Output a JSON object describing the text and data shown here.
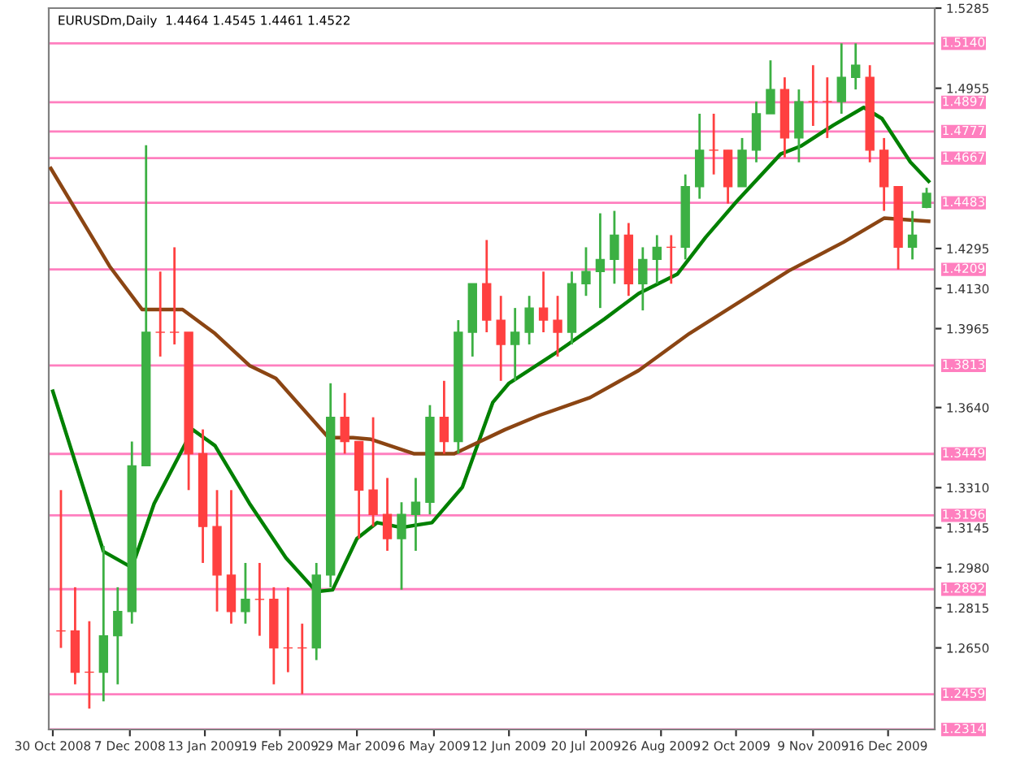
{
  "chart_data": {
    "type": "candlestick",
    "title": "EURUSDm,Daily  1.4464 1.4545 1.4461 1.4522",
    "x": [
      "2008-11-03",
      "2008-11-10",
      "2008-11-17",
      "2008-11-24",
      "2008-12-01",
      "2008-12-08",
      "2008-12-15",
      "2008-12-22",
      "2008-12-29",
      "2009-01-05",
      "2009-01-12",
      "2009-01-19",
      "2009-01-26",
      "2009-02-02",
      "2009-02-09",
      "2009-02-16",
      "2009-02-23",
      "2009-03-02",
      "2009-03-09",
      "2009-03-16",
      "2009-03-23",
      "2009-03-30",
      "2009-04-06",
      "2009-04-13",
      "2009-04-20",
      "2009-04-27",
      "2009-05-04",
      "2009-05-11",
      "2009-05-18",
      "2009-05-25",
      "2009-06-01",
      "2009-06-08",
      "2009-06-15",
      "2009-06-22",
      "2009-06-29",
      "2009-07-06",
      "2009-07-13",
      "2009-07-20",
      "2009-07-27",
      "2009-08-03",
      "2009-08-10",
      "2009-08-17",
      "2009-08-24",
      "2009-08-31",
      "2009-09-07",
      "2009-09-14",
      "2009-09-21",
      "2009-09-28",
      "2009-10-05",
      "2009-10-12",
      "2009-10-19",
      "2009-10-26",
      "2009-11-02",
      "2009-11-09",
      "2009-11-16",
      "2009-11-23",
      "2009-11-30",
      "2009-12-07",
      "2009-12-14",
      "2009-12-21",
      "2009-12-28",
      "2010-01-04"
    ],
    "ohlc": [
      [
        1.272,
        1.33,
        1.265,
        1.272
      ],
      [
        1.272,
        1.29,
        1.25,
        1.255
      ],
      [
        1.255,
        1.276,
        1.24,
        1.255
      ],
      [
        1.255,
        1.307,
        1.243,
        1.27
      ],
      [
        1.27,
        1.29,
        1.25,
        1.28
      ],
      [
        1.28,
        1.35,
        1.275,
        1.34
      ],
      [
        1.34,
        1.472,
        1.34,
        1.395
      ],
      [
        1.395,
        1.42,
        1.385,
        1.395
      ],
      [
        1.395,
        1.43,
        1.39,
        1.395
      ],
      [
        1.395,
        1.395,
        1.33,
        1.345
      ],
      [
        1.345,
        1.355,
        1.3,
        1.315
      ],
      [
        1.315,
        1.33,
        1.28,
        1.295
      ],
      [
        1.295,
        1.33,
        1.275,
        1.28
      ],
      [
        1.28,
        1.3,
        1.275,
        1.285
      ],
      [
        1.285,
        1.3,
        1.27,
        1.285
      ],
      [
        1.285,
        1.29,
        1.25,
        1.265
      ],
      [
        1.265,
        1.29,
        1.255,
        1.265
      ],
      [
        1.265,
        1.275,
        1.246,
        1.265
      ],
      [
        1.265,
        1.3,
        1.26,
        1.295
      ],
      [
        1.295,
        1.374,
        1.29,
        1.36
      ],
      [
        1.36,
        1.37,
        1.345,
        1.35
      ],
      [
        1.35,
        1.35,
        1.31,
        1.33
      ],
      [
        1.33,
        1.36,
        1.315,
        1.32
      ],
      [
        1.32,
        1.335,
        1.305,
        1.31
      ],
      [
        1.31,
        1.325,
        1.289,
        1.32
      ],
      [
        1.32,
        1.335,
        1.305,
        1.325
      ],
      [
        1.325,
        1.365,
        1.32,
        1.36
      ],
      [
        1.36,
        1.375,
        1.345,
        1.35
      ],
      [
        1.35,
        1.4,
        1.345,
        1.395
      ],
      [
        1.395,
        1.415,
        1.385,
        1.415
      ],
      [
        1.415,
        1.433,
        1.395,
        1.4
      ],
      [
        1.4,
        1.41,
        1.375,
        1.39
      ],
      [
        1.39,
        1.405,
        1.375,
        1.395
      ],
      [
        1.395,
        1.41,
        1.39,
        1.405
      ],
      [
        1.405,
        1.42,
        1.395,
        1.4
      ],
      [
        1.4,
        1.41,
        1.385,
        1.395
      ],
      [
        1.395,
        1.42,
        1.39,
        1.415
      ],
      [
        1.415,
        1.43,
        1.41,
        1.42
      ],
      [
        1.42,
        1.444,
        1.405,
        1.425
      ],
      [
        1.425,
        1.445,
        1.415,
        1.435
      ],
      [
        1.435,
        1.44,
        1.41,
        1.415
      ],
      [
        1.415,
        1.43,
        1.404,
        1.425
      ],
      [
        1.425,
        1.435,
        1.415,
        1.43
      ],
      [
        1.43,
        1.435,
        1.415,
        1.43
      ],
      [
        1.43,
        1.46,
        1.425,
        1.455
      ],
      [
        1.455,
        1.485,
        1.45,
        1.47
      ],
      [
        1.47,
        1.485,
        1.46,
        1.47
      ],
      [
        1.47,
        1.47,
        1.448,
        1.455
      ],
      [
        1.455,
        1.475,
        1.455,
        1.47
      ],
      [
        1.47,
        1.49,
        1.465,
        1.485
      ],
      [
        1.485,
        1.507,
        1.485,
        1.495
      ],
      [
        1.495,
        1.5,
        1.467,
        1.475
      ],
      [
        1.475,
        1.495,
        1.465,
        1.49
      ],
      [
        1.49,
        1.505,
        1.48,
        1.49
      ],
      [
        1.49,
        1.5,
        1.475,
        1.49
      ],
      [
        1.49,
        1.514,
        1.485,
        1.5
      ],
      [
        1.5,
        1.514,
        1.495,
        1.505
      ],
      [
        1.5,
        1.505,
        1.465,
        1.47
      ],
      [
        1.47,
        1.475,
        1.445,
        1.455
      ],
      [
        1.455,
        1.455,
        1.4209,
        1.43
      ],
      [
        1.43,
        1.445,
        1.425,
        1.435
      ],
      [
        1.4464,
        1.4545,
        1.4461,
        1.4522
      ]
    ],
    "colors": [
      "#ff4040",
      "#ff4040",
      "#ff4040",
      "#3cb043",
      "#3cb043",
      "#3cb043",
      "#3cb043",
      "#ff4040",
      "#ff4040",
      "#ff4040",
      "#ff4040",
      "#ff4040",
      "#ff4040",
      "#3cb043",
      "#ff4040",
      "#ff4040",
      "#ff4040",
      "#ff4040",
      "#3cb043",
      "#3cb043",
      "#ff4040",
      "#ff4040",
      "#ff4040",
      "#ff4040",
      "#3cb043",
      "#3cb043",
      "#3cb043",
      "#ff4040",
      "#3cb043",
      "#3cb043",
      "#ff4040",
      "#ff4040",
      "#3cb043",
      "#3cb043",
      "#ff4040",
      "#ff4040",
      "#3cb043",
      "#3cb043",
      "#3cb043",
      "#3cb043",
      "#ff4040",
      "#3cb043",
      "#3cb043",
      "#ff4040",
      "#3cb043",
      "#3cb043",
      "#ff4040",
      "#ff4040",
      "#3cb043",
      "#3cb043",
      "#3cb043",
      "#ff4040",
      "#3cb043",
      "#ff4040",
      "#ff4040",
      "#3cb043",
      "#3cb043",
      "#ff4040",
      "#ff4040",
      "#ff4040",
      "#3cb043",
      "#3cb043"
    ],
    "series": [
      {
        "type": "line",
        "color": "#008000",
        "x": [
          "2008-10-30",
          "2008-11-24",
          "2008-12-08",
          "2008-12-19",
          "2009-01-07",
          "2009-01-18",
          "2009-02-04",
          "2009-02-22",
          "2009-03-09",
          "2009-03-17",
          "2009-03-29",
          "2009-04-08",
          "2009-04-20",
          "2009-05-05",
          "2009-05-20",
          "2009-06-04",
          "2009-06-12",
          "2009-07-04",
          "2009-07-29",
          "2009-08-15",
          "2009-09-03",
          "2009-09-17",
          "2009-10-02",
          "2009-10-24",
          "2009-11-03",
          "2009-11-19",
          "2009-12-04",
          "2009-12-13",
          "2009-12-27",
          "2010-01-05"
        ],
        "values": [
          1.3707,
          1.3047,
          1.2981,
          1.3245,
          1.3549,
          1.3483,
          1.3245,
          1.3021,
          1.2882,
          1.2889,
          1.31,
          1.3166,
          1.3146,
          1.3166,
          1.3312,
          1.3661,
          1.374,
          1.3859,
          1.4004,
          1.411,
          1.4189,
          1.4341,
          1.4486,
          1.4684,
          1.4717,
          1.4803,
          1.4876,
          1.483,
          1.4651,
          1.4572
        ]
      },
      {
        "type": "line",
        "color": "#8b4513",
        "x": [
          "2008-10-29",
          "2008-11-27",
          "2008-12-13",
          "2009-01-02",
          "2009-01-18",
          "2009-02-04",
          "2009-02-17",
          "2009-03-15",
          "2009-03-27",
          "2009-04-05",
          "2009-04-26",
          "2009-05-16",
          "2009-06-10",
          "2009-06-27",
          "2009-07-22",
          "2009-08-15",
          "2009-09-09",
          "2009-10-28",
          "2009-11-24",
          "2009-12-14",
          "2010-01-05"
        ],
        "values": [
          1.4625,
          1.4222,
          1.4044,
          1.4044,
          1.3945,
          1.3813,
          1.376,
          1.3516,
          1.3516,
          1.3509,
          1.345,
          1.345,
          1.3549,
          1.3608,
          1.3681,
          1.3793,
          1.3945,
          1.4203,
          1.4321,
          1.442,
          1.4407
        ]
      }
    ],
    "xlim": [
      "2008-10-28",
      "2010-01-08"
    ],
    "xticks": [
      {
        "value": "2008-10-30",
        "label": "30 Oct 2008"
      },
      {
        "value": "2008-12-07",
        "label": "7 Dec 2008"
      },
      {
        "value": "2009-01-13",
        "label": "13 Jan 2009"
      },
      {
        "value": "2009-02-19",
        "label": "19 Feb 2009"
      },
      {
        "value": "2009-03-29",
        "label": "29 Mar 2009"
      },
      {
        "value": "2009-05-06",
        "label": "6 May 2009"
      },
      {
        "value": "2009-06-12",
        "label": "12 Jun 2009"
      },
      {
        "value": "2009-07-20",
        "label": "20 Jul 2009"
      },
      {
        "value": "2009-08-26",
        "label": "26 Aug 2009"
      },
      {
        "value": "2009-10-02",
        "label": "2 Oct 2009"
      },
      {
        "value": "2009-11-09",
        "label": "9 Nov 2009"
      },
      {
        "value": "2009-12-16",
        "label": "16 Dec 2009"
      }
    ],
    "ylim": [
      1.2314,
      1.5285
    ],
    "yticks": [
      {
        "value": 1.5285,
        "label": "1.5285"
      },
      {
        "value": 1.4955,
        "label": "1.4955"
      },
      {
        "value": 1.4295,
        "label": "1.4295"
      },
      {
        "value": 1.413,
        "label": "1.4130"
      },
      {
        "value": 1.3965,
        "label": "1.3965"
      },
      {
        "value": 1.364,
        "label": "1.3640"
      },
      {
        "value": 1.331,
        "label": "1.3310"
      },
      {
        "value": 1.3145,
        "label": "1.3145"
      },
      {
        "value": 1.298,
        "label": "1.2980"
      },
      {
        "value": 1.2815,
        "label": "1.2815"
      },
      {
        "value": 1.265,
        "label": "1.2650"
      }
    ],
    "ref_lines": [
      {
        "axis": "y",
        "value": 1.514,
        "label": "1.5140",
        "color": "#ff7fbf"
      },
      {
        "axis": "y",
        "value": 1.4897,
        "label": "1.4897",
        "color": "#ff7fbf"
      },
      {
        "axis": "y",
        "value": 1.4777,
        "label": "1.4777",
        "color": "#ff7fbf"
      },
      {
        "axis": "y",
        "value": 1.4667,
        "label": "1.4667",
        "color": "#ff7fbf"
      },
      {
        "axis": "y",
        "value": 1.4483,
        "label": "1.4483",
        "color": "#ff7fbf"
      },
      {
        "axis": "y",
        "value": 1.4209,
        "label": "1.4209",
        "color": "#ff7fbf"
      },
      {
        "axis": "y",
        "value": 1.3813,
        "label": "1.3813",
        "color": "#ff7fbf"
      },
      {
        "axis": "y",
        "value": 1.3449,
        "label": "1.3449",
        "color": "#ff7fbf"
      },
      {
        "axis": "y",
        "value": 1.3196,
        "label": "1.3196",
        "color": "#ff7fbf"
      },
      {
        "axis": "y",
        "value": 1.2892,
        "label": "1.2892",
        "color": "#ff7fbf"
      },
      {
        "axis": "y",
        "value": 1.2459,
        "label": "1.2459",
        "color": "#ff7fbf"
      },
      {
        "axis": "y",
        "value": 1.2314,
        "label": "1.2314",
        "color": "#ff7fbf"
      }
    ],
    "grid": false,
    "legend": false
  }
}
